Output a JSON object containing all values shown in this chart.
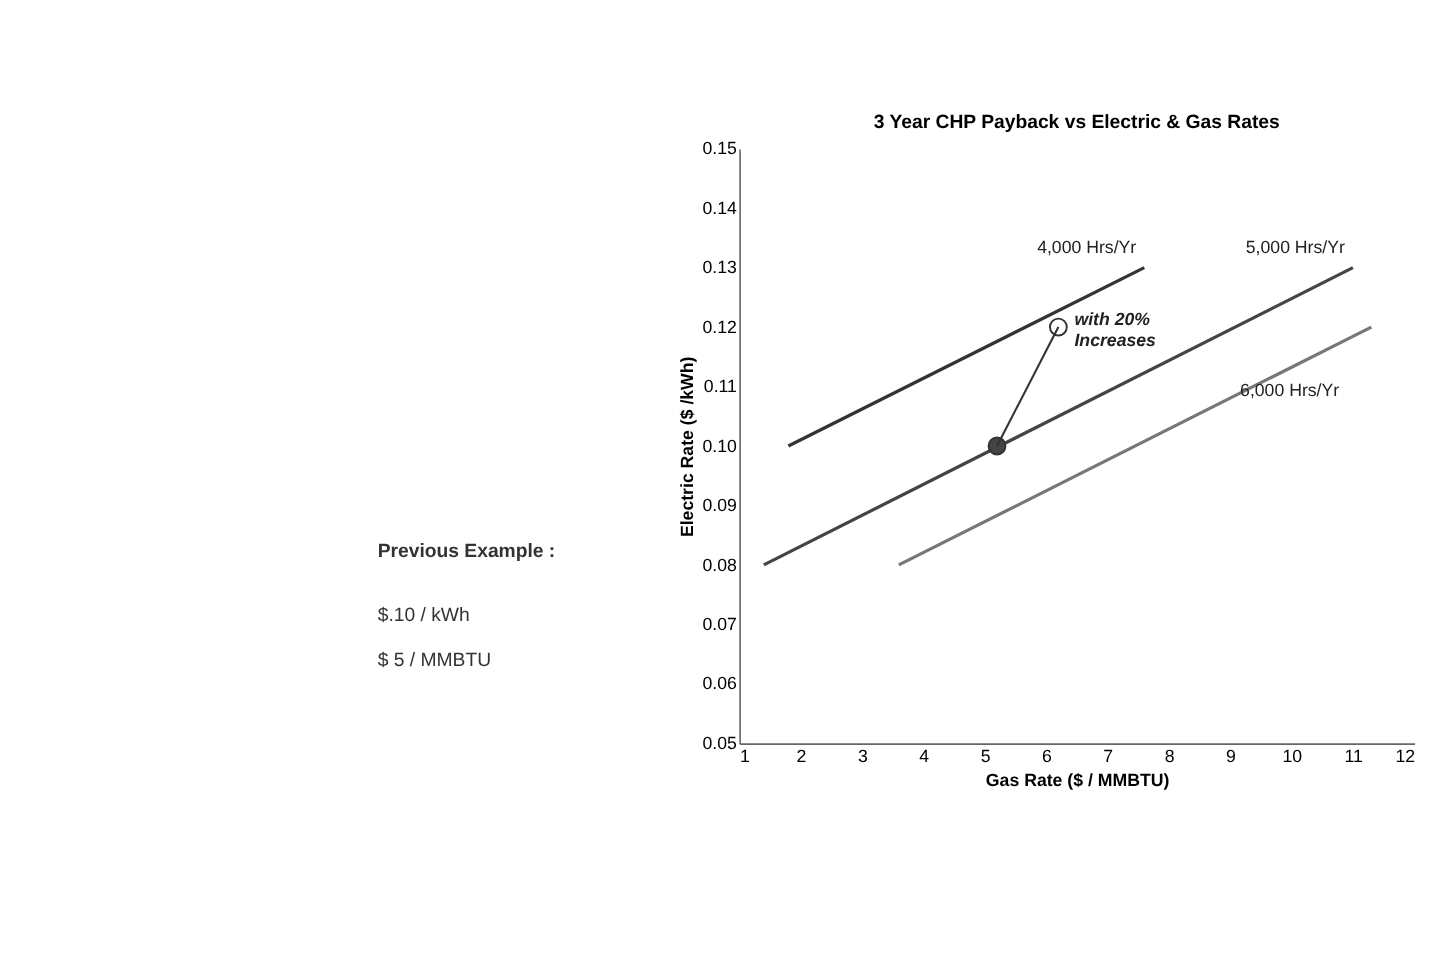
{
  "chart_data": {
    "type": "line",
    "title": "3 Year CHP Payback vs Electric & Gas Rates",
    "xlabel": "Gas Rate ($ / MMBTU)",
    "ylabel": "Electric Rate ($ /kWh)",
    "xlim": [
      1,
      12
    ],
    "xticks": [
      1,
      2,
      3,
      4,
      5,
      6,
      7,
      8,
      9,
      10,
      11,
      12
    ],
    "ylim": [
      0.05,
      0.15
    ],
    "yticks": [
      {
        "value": 0.05,
        "label": "0.05"
      },
      {
        "value": 0.06,
        "label": "0.06"
      },
      {
        "value": 0.07,
        "label": "0.07"
      },
      {
        "value": 0.08,
        "label": "0.08"
      },
      {
        "value": 0.09,
        "label": "0.09"
      },
      {
        "value": 0.1,
        "label": "0.10"
      },
      {
        "value": 0.11,
        "label": "0.11"
      },
      {
        "value": 0.12,
        "label": "0.12"
      },
      {
        "value": 0.13,
        "label": "0.13"
      },
      {
        "value": 0.14,
        "label": "0.14"
      },
      {
        "value": 0.15,
        "label": "0.15"
      }
    ],
    "grid": false,
    "legend": false,
    "series": [
      {
        "name": "4,000 Hrs/Yr",
        "color": "#333333",
        "x": [
          1.8,
          7.6
        ],
        "values": [
          0.1,
          0.13
        ]
      },
      {
        "name": "5,000 Hrs/Yr",
        "color": "#444444",
        "x": [
          1.4,
          11.0
        ],
        "values": [
          0.08,
          0.13
        ]
      },
      {
        "name": "6,000 Hrs/Yr",
        "color": "#777777",
        "x": [
          3.6,
          11.3
        ],
        "values": [
          0.08,
          0.12
        ]
      },
      {
        "type": "scatter",
        "marker": "circle",
        "color": "#444444",
        "x": [
          5.2
        ],
        "values": [
          0.1
        ]
      },
      {
        "type": "scatter",
        "marker": "circle",
        "color": "#ffffff",
        "x": [
          6.2
        ],
        "values": [
          0.12
        ]
      }
    ],
    "annotations": [
      {
        "text": "with 20% Increases",
        "x": 6.2,
        "y": 0.12
      },
      "Previous Example :",
      "$.10 / kWh",
      "$ 5 / MMBTU"
    ]
  }
}
